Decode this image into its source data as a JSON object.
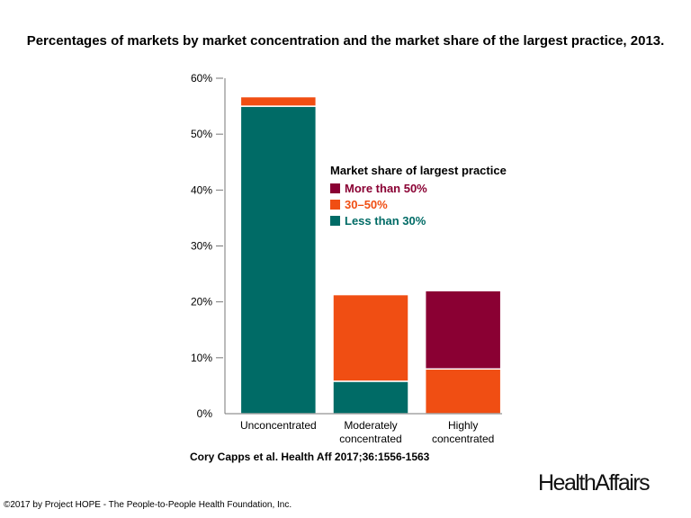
{
  "chart_data": {
    "type": "bar",
    "stacked": true,
    "title": "Percentages of markets by market concentration and the market share of the largest practice, 2013.",
    "categories": [
      "Unconcentrated",
      "Moderately concentrated",
      "Highly concentrated"
    ],
    "series": [
      {
        "name": "Less than 30%",
        "color": "#006b66",
        "values": [
          55.0,
          5.8,
          0.0
        ]
      },
      {
        "name": "30–50%",
        "color": "#f04e13",
        "values": [
          1.7,
          15.5,
          8.0
        ]
      },
      {
        "name": "More than 50%",
        "color": "#8a0033",
        "values": [
          0.0,
          0.0,
          14.0
        ]
      }
    ],
    "yticks": [
      "0%",
      "10%",
      "20%",
      "30%",
      "40%",
      "50%",
      "60%"
    ],
    "ylim": [
      0,
      60
    ],
    "legend_title": "Market share of largest practice",
    "legend_placement": "center-right"
  },
  "citation": "Cory Capps et al. Health Aff 2017;36:1556-1563",
  "brand": "HealthAffairs",
  "copyright": "©2017 by Project HOPE - The People-to-People Health Foundation, Inc."
}
